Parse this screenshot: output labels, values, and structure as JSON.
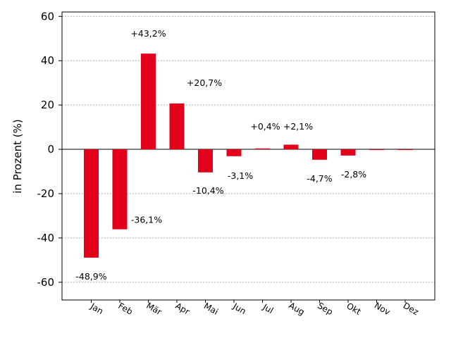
{
  "chart_data": {
    "type": "bar",
    "ylabel": "in Prozent (%)",
    "xlabel": "",
    "ylim": [
      -68,
      62
    ],
    "yticks": [
      60,
      40,
      20,
      0,
      -20,
      -40,
      -60
    ],
    "ytick_labels": [
      "60",
      "40",
      "20",
      "0",
      "-20",
      "-40",
      "-60"
    ],
    "categories": [
      "Jan",
      "Feb",
      "Mär",
      "Apr",
      "Mai",
      "Jun",
      "Jul",
      "Aug",
      "Sep",
      "Okt",
      "Nov",
      "Dez"
    ],
    "values": [
      -48.9,
      -36.1,
      43.2,
      20.7,
      -10.4,
      -3.1,
      0.4,
      2.1,
      -4.7,
      -2.8,
      -0.1,
      -0.1
    ],
    "data_labels": [
      "-48,9%",
      "-36,1%",
      "+43,2%",
      "+20,7%",
      "-10,4%",
      "-3,1%",
      "+0,4%",
      "+2,1%",
      "-4,7%",
      "-2,8%",
      "",
      ""
    ],
    "grid": true,
    "bar_color": "#e2001a"
  }
}
